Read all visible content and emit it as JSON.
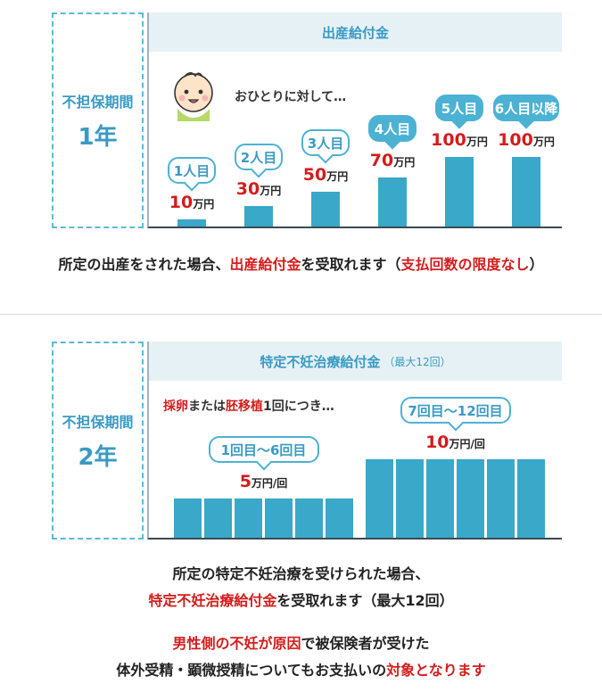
{
  "section1": {
    "period_label": "不担保期間",
    "period_value": "1年",
    "header": "出産給付金",
    "intro": "おひとりに対して…",
    "bars": [
      {
        "label": "1人目",
        "num": "10",
        "unit": "万円",
        "value": 10
      },
      {
        "label": "2人目",
        "num": "30",
        "unit": "万円",
        "value": 30
      },
      {
        "label": "3人目",
        "num": "50",
        "unit": "万円",
        "value": 50
      },
      {
        "label": "4人目",
        "num": "70",
        "unit": "万円",
        "value": 70
      },
      {
        "label": "5人目",
        "num": "100",
        "unit": "万円",
        "value": 100
      },
      {
        "label": "6人目以降",
        "num": "100",
        "unit": "万円",
        "value": 100
      }
    ],
    "caption": {
      "part1": "所定の出産をされた場合、",
      "part2": "出産給付金",
      "part3": "を受取れます（",
      "part4": "支払回数の限度なし",
      "part5": "）"
    }
  },
  "section2": {
    "period_label": "不担保期間",
    "period_value": "2年",
    "header": "特定不妊治療給付金",
    "header_sub": "（最大12回）",
    "intro": {
      "part1": "採卵",
      "part2": "または",
      "part3": "胚移植",
      "part4": "1回につき…"
    },
    "group1": {
      "label": "1回目〜6回目",
      "num": "5",
      "unit": "万円/回",
      "value": 5,
      "count": 6
    },
    "group2": {
      "label": "7回目〜12回目",
      "num": "10",
      "unit": "万円/回",
      "value": 10,
      "count": 6
    },
    "caption_line1": "所定の特定不妊治療を受けられた場合、",
    "caption_line2": {
      "part1": "特定不妊治療給付金",
      "part2": "を受取れます（最大12回）"
    },
    "note_line1": {
      "part1": "男性側の不妊が原因",
      "part2": "で被保険者が受けた"
    },
    "note_line2": {
      "part1": "体外受精・顕微授精についてもお支払いの",
      "part2": "対象となります"
    }
  }
}
